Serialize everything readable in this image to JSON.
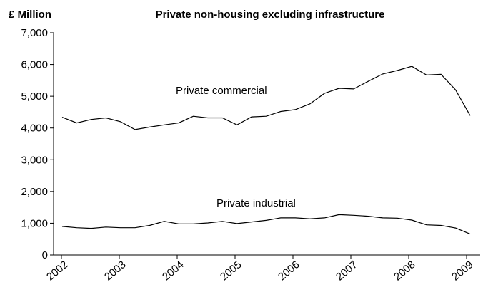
{
  "chart_data": {
    "type": "line",
    "title": "Private non-housing excluding infrastructure",
    "ylabel": "£ Million",
    "xlabel": "",
    "ylim": [
      0,
      7000
    ],
    "yticks": [
      "0",
      "1,000",
      "2,000",
      "3,000",
      "4,000",
      "5,000",
      "6,000",
      "7,000"
    ],
    "ytick_values": [
      0,
      1000,
      2000,
      3000,
      4000,
      5000,
      6000,
      7000
    ],
    "xtick_labels": [
      "2002",
      "2003",
      "2004",
      "2005",
      "2006",
      "2007",
      "2008",
      "2009"
    ],
    "grid": false,
    "series": [
      {
        "name": "Private commercial",
        "color": "#000000",
        "values": [
          4340,
          4160,
          4270,
          4320,
          4200,
          3950,
          4030,
          4100,
          4160,
          4370,
          4320,
          4320,
          4100,
          4350,
          4370,
          4520,
          4580,
          4760,
          5090,
          5250,
          5230,
          5470,
          5700,
          5810,
          5940,
          5670,
          5690,
          5200,
          4390
        ]
      },
      {
        "name": "Private industrial",
        "color": "#000000",
        "values": [
          900,
          860,
          840,
          880,
          860,
          860,
          930,
          1060,
          980,
          980,
          1010,
          1060,
          990,
          1040,
          1090,
          1170,
          1170,
          1140,
          1170,
          1270,
          1250,
          1220,
          1170,
          1160,
          1100,
          950,
          930,
          850,
          660
        ]
      }
    ]
  }
}
